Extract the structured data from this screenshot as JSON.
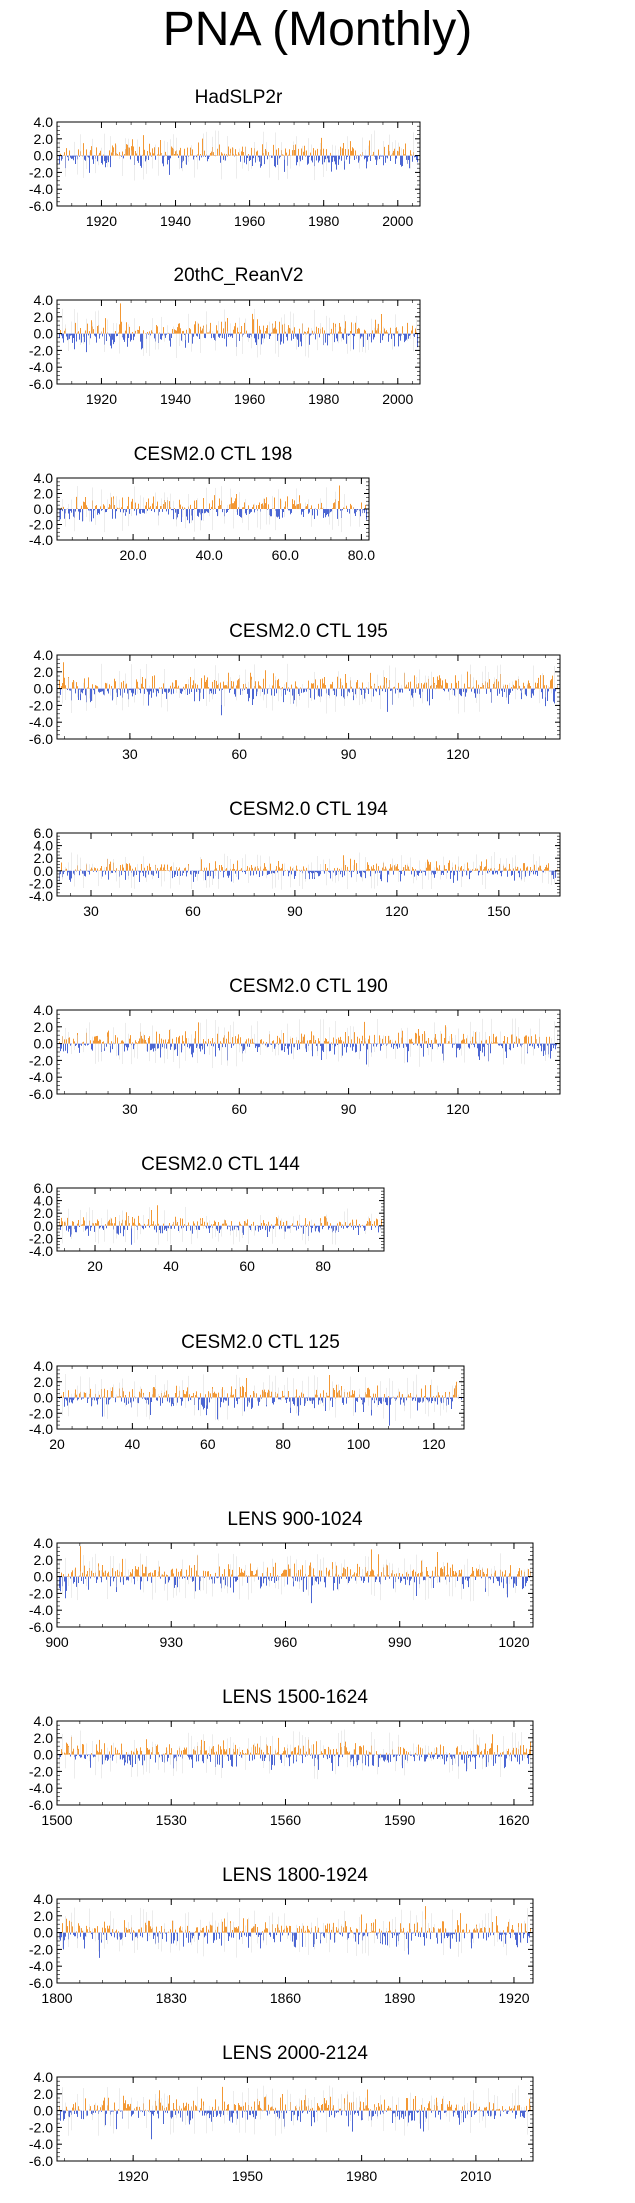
{
  "title": "PNA (Monthly)",
  "colors": {
    "positive": "#f07f00",
    "negative": "#1f3fc8",
    "frame": "#000000"
  },
  "chart_data": [
    {
      "type": "bar",
      "title": "HadSLP2r",
      "xlim": [
        1908,
        2006
      ],
      "xticks": [
        1920,
        1940,
        1960,
        1980,
        2000
      ],
      "xtick_labels": [
        "1920",
        "1940",
        "1960",
        "1980",
        "2000"
      ],
      "ylim": [
        -6,
        4
      ],
      "yticks": [
        4,
        2,
        0,
        -2,
        -4,
        -6
      ],
      "ytick_labels": [
        "4.0",
        "2.0",
        "0.0",
        "-2.0",
        "-4.0",
        "-6.0"
      ],
      "seed": 11
    },
    {
      "type": "bar",
      "title": "20thC_ReanV2",
      "xlim": [
        1908,
        2006
      ],
      "xticks": [
        1920,
        1940,
        1960,
        1980,
        2000
      ],
      "xtick_labels": [
        "1920",
        "1940",
        "1960",
        "1980",
        "2000"
      ],
      "ylim": [
        -6,
        4
      ],
      "yticks": [
        4,
        2,
        0,
        -2,
        -4,
        -6
      ],
      "ytick_labels": [
        "4.0",
        "2.0",
        "0.0",
        "-2.0",
        "-4.0",
        "-6.0"
      ],
      "seed": 23
    },
    {
      "type": "bar",
      "title": "CESM2.0 CTL 198",
      "xlim": [
        0,
        82
      ],
      "xticks": [
        20,
        40,
        60,
        80
      ],
      "xtick_labels": [
        "20.0",
        "40.0",
        "60.0",
        "80.0"
      ],
      "ylim": [
        -4,
        4
      ],
      "yticks": [
        4,
        2,
        0,
        -2,
        -4
      ],
      "ytick_labels": [
        "4.0",
        "2.0",
        "0.0",
        "-2.0",
        "-4.0"
      ],
      "seed": 37
    },
    {
      "type": "bar",
      "title": "CESM2.0 CTL 195",
      "xlim": [
        10,
        148
      ],
      "xticks": [
        30,
        60,
        90,
        120
      ],
      "xtick_labels": [
        "30",
        "60",
        "90",
        "120"
      ],
      "ylim": [
        -6,
        4
      ],
      "yticks": [
        4,
        2,
        0,
        -2,
        -4,
        -6
      ],
      "ytick_labels": [
        "4.0",
        "2.0",
        "0.0",
        "-2.0",
        "-4.0",
        "-6.0"
      ],
      "seed": 41
    },
    {
      "type": "bar",
      "title": "CESM2.0 CTL 194",
      "xlim": [
        20,
        168
      ],
      "xticks": [
        30,
        60,
        90,
        120,
        150
      ],
      "xtick_labels": [
        "30",
        "60",
        "90",
        "120",
        "150"
      ],
      "ylim": [
        -4,
        6
      ],
      "yticks": [
        6,
        4,
        2,
        0,
        -2,
        -4
      ],
      "ytick_labels": [
        "6.0",
        "4.0",
        "2.0",
        "0.0",
        "-2.0",
        "-4.0"
      ],
      "seed": 53
    },
    {
      "type": "bar",
      "title": "CESM2.0 CTL 190",
      "xlim": [
        10,
        148
      ],
      "xticks": [
        30,
        60,
        90,
        120
      ],
      "xtick_labels": [
        "30",
        "60",
        "90",
        "120"
      ],
      "ylim": [
        -6,
        4
      ],
      "yticks": [
        4,
        2,
        0,
        -2,
        -4,
        -6
      ],
      "ytick_labels": [
        "4.0",
        "2.0",
        "0.0",
        "-2.0",
        "-4.0",
        "-6.0"
      ],
      "seed": 61
    },
    {
      "type": "bar",
      "title": "CESM2.0 CTL 144",
      "xlim": [
        10,
        96
      ],
      "xticks": [
        20,
        40,
        60,
        80
      ],
      "xtick_labels": [
        "20",
        "40",
        "60",
        "80"
      ],
      "ylim": [
        -4,
        6
      ],
      "yticks": [
        6,
        4,
        2,
        0,
        -2,
        -4
      ],
      "ytick_labels": [
        "6.0",
        "4.0",
        "2.0",
        "0.0",
        "-2.0",
        "-4.0"
      ],
      "seed": 73
    },
    {
      "type": "bar",
      "title": "CESM2.0 CTL 125",
      "xlim": [
        20,
        128
      ],
      "xticks": [
        20,
        40,
        60,
        80,
        100,
        120
      ],
      "xtick_labels": [
        "20",
        "40",
        "60",
        "80",
        "100",
        "120"
      ],
      "ylim": [
        -4,
        4
      ],
      "yticks": [
        4,
        2,
        0,
        -2,
        -4
      ],
      "ytick_labels": [
        "4.0",
        "2.0",
        "0.0",
        "-2.0",
        "-4.0"
      ],
      "seed": 89
    },
    {
      "type": "bar",
      "title": "LENS 900-1024",
      "xlim": [
        900,
        1025
      ],
      "xticks": [
        900,
        930,
        960,
        990,
        1020
      ],
      "xtick_labels": [
        "900",
        "930",
        "960",
        "990",
        "1020"
      ],
      "ylim": [
        -6,
        4
      ],
      "yticks": [
        4,
        2,
        0,
        -2,
        -4,
        -6
      ],
      "ytick_labels": [
        "4.0",
        "2.0",
        "0.0",
        "-2.0",
        "-4.0",
        "-6.0"
      ],
      "seed": 97
    },
    {
      "type": "bar",
      "title": "LENS 1500-1624",
      "xlim": [
        1500,
        1625
      ],
      "xticks": [
        1500,
        1530,
        1560,
        1590,
        1620
      ],
      "xtick_labels": [
        "1500",
        "1530",
        "1560",
        "1590",
        "1620"
      ],
      "ylim": [
        -6,
        4
      ],
      "yticks": [
        4,
        2,
        0,
        -2,
        -4,
        -6
      ],
      "ytick_labels": [
        "4.0",
        "2.0",
        "0.0",
        "-2.0",
        "-4.0",
        "-6.0"
      ],
      "seed": 103
    },
    {
      "type": "bar",
      "title": "LENS 1800-1924",
      "xlim": [
        1800,
        1925
      ],
      "xticks": [
        1800,
        1830,
        1860,
        1890,
        1920
      ],
      "xtick_labels": [
        "1800",
        "1830",
        "1860",
        "1890",
        "1920"
      ],
      "ylim": [
        -6,
        4
      ],
      "yticks": [
        4,
        2,
        0,
        -2,
        -4,
        -6
      ],
      "ytick_labels": [
        "4.0",
        "2.0",
        "0.0",
        "-2.0",
        "-4.0",
        "-6.0"
      ],
      "seed": 113
    },
    {
      "type": "bar",
      "title": "LENS 2000-2124",
      "xlim": [
        1900,
        2025
      ],
      "xticks": [
        1920,
        1950,
        1980,
        2010
      ],
      "xtick_labels": [
        "1920",
        "1950",
        "1980",
        "2010"
      ],
      "ylim": [
        -6,
        4
      ],
      "yticks": [
        4,
        2,
        0,
        -2,
        -4,
        -6
      ],
      "ytick_labels": [
        "4.0",
        "2.0",
        "0.0",
        "-2.0",
        "-4.0",
        "-6.0"
      ],
      "seed": 127
    }
  ]
}
